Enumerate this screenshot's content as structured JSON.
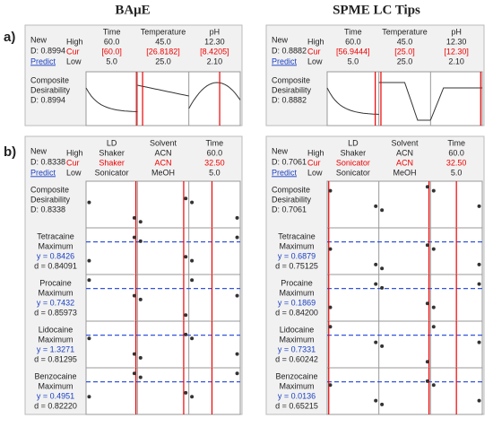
{
  "headings": [
    "BAμE",
    "SPME LC Tips"
  ],
  "section_labels": [
    "a)",
    "b)"
  ],
  "panels": [
    {
      "new": "New",
      "d": "D: 0.8994",
      "predict": "Predict",
      "levels": [
        "High",
        "Cur",
        "Low"
      ],
      "factors": [
        {
          "name": "Time",
          "high": "60.0",
          "cur": "[60.0]",
          "low": "5.0"
        },
        {
          "name": "Temperature",
          "high": "45.0",
          "cur": "[26.8182]",
          "low": "25.0"
        },
        {
          "name": "pH",
          "high": "12.30",
          "cur": "[8.4205]",
          "low": "2.10"
        }
      ],
      "rows": [
        {
          "lines": [
            "Composite",
            "Desirability",
            "D: 0.8994"
          ]
        }
      ]
    },
    {
      "new": "New",
      "d": "D: 0.8882",
      "predict": "Predict",
      "levels": [
        "High",
        "Cur",
        "Low"
      ],
      "factors": [
        {
          "name": "Time",
          "high": "60.0",
          "cur": "[56.9444]",
          "low": "5.0"
        },
        {
          "name": "Temperature",
          "high": "45.0",
          "cur": "[25.0]",
          "low": "25.0"
        },
        {
          "name": "pH",
          "high": "12.30",
          "cur": "[12.30]",
          "low": "2.10"
        }
      ],
      "rows": [
        {
          "lines": [
            "Composite",
            "Desirability",
            "D: 0.8882"
          ]
        }
      ]
    },
    {
      "new": "New",
      "d": "D: 0.8338",
      "predict": "Predict",
      "levels": [
        "High",
        "Cur",
        "Low"
      ],
      "factors": [
        {
          "name": "LD",
          "high": "Shaker",
          "cur": "Shaker",
          "low": "Sonicator"
        },
        {
          "name": "Solvent",
          "high": "ACN",
          "cur": "ACN",
          "low": "MeOH"
        },
        {
          "name": "Time",
          "high": "60.0",
          "cur": "32.50",
          "low": "5.0"
        }
      ],
      "rows": [
        {
          "lines": [
            "Composite",
            "Desirability",
            "D: 0.8338"
          ]
        },
        {
          "lines": [
            "Tetracaine",
            "Maximum",
            "y = 0.8426",
            "d = 0.84091"
          ]
        },
        {
          "lines": [
            "Procaine",
            "Maximum",
            "y = 0.7432",
            "d = 0.85973"
          ]
        },
        {
          "lines": [
            "Lidocaine",
            "Maximum",
            "y = 1.3271",
            "d = 0.81295"
          ]
        },
        {
          "lines": [
            "Benzocaine",
            "Maximum",
            "y = 0.4951",
            "d = 0.82220"
          ]
        }
      ]
    },
    {
      "new": "New",
      "d": "D: 0.7061",
      "predict": "Predict",
      "levels": [
        "High",
        "Cur",
        "Low"
      ],
      "factors": [
        {
          "name": "LD",
          "high": "Shaker",
          "cur": "Sonicator",
          "low": "Sonicator"
        },
        {
          "name": "Solvent",
          "high": "ACN",
          "cur": "ACN",
          "low": "MeOH"
        },
        {
          "name": "Time",
          "high": "60.0",
          "cur": "32.50",
          "low": "5.0"
        }
      ],
      "rows": [
        {
          "lines": [
            "Composite",
            "Desirability",
            "D: 0.7061"
          ]
        },
        {
          "lines": [
            "Tetracaine",
            "Maximum",
            "y = 0.6879",
            "d = 0.75125"
          ]
        },
        {
          "lines": [
            "Procaine",
            "Maximum",
            "y = 0.1869",
            "d = 0.84200"
          ]
        },
        {
          "lines": [
            "Lidocaine",
            "Maximum",
            "y = 0.7331",
            "d = 0.60242"
          ]
        },
        {
          "lines": [
            "Benzocaine",
            "Maximum",
            "y = 0.0136",
            "d = 0.65215"
          ]
        }
      ]
    }
  ]
}
